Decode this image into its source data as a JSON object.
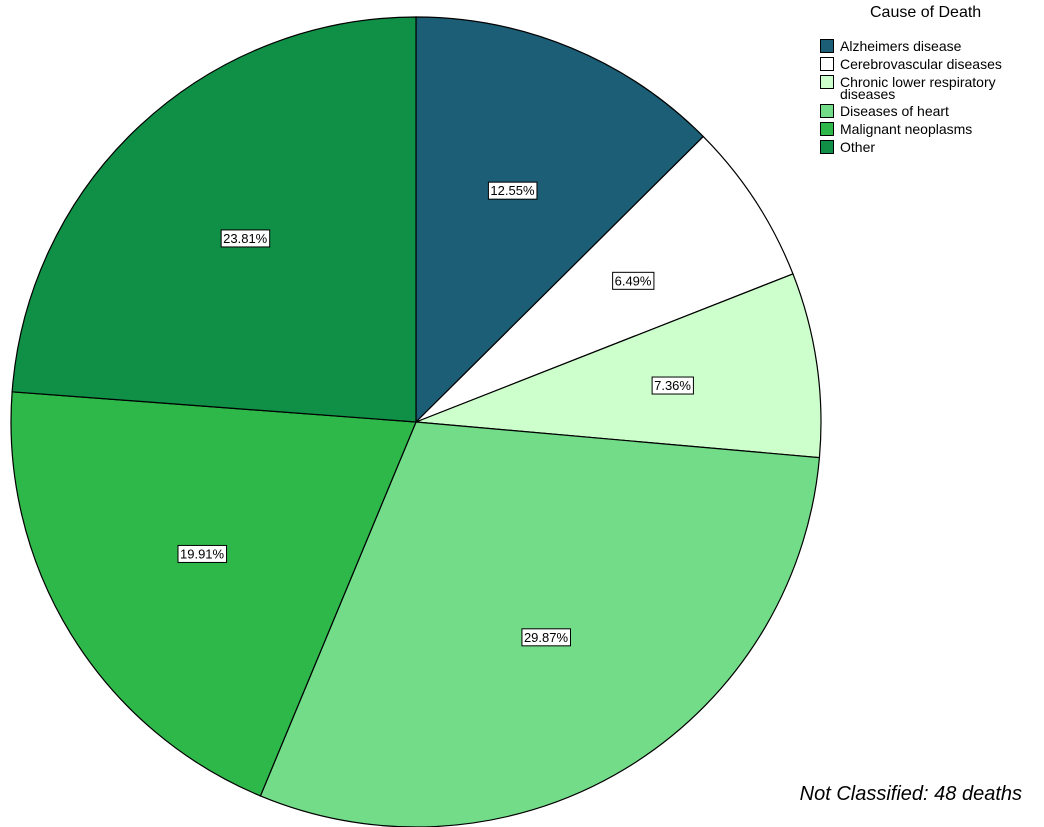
{
  "chart_data": {
    "type": "pie",
    "legend_title": "Cause of Death",
    "legend_position": "top-right",
    "slices": [
      {
        "label": "Alzheimers disease",
        "value": 12.55,
        "display": "12.55%",
        "color": "#1b5e76"
      },
      {
        "label": "Cerebrovascular diseases",
        "value": 6.49,
        "display": "6.49%",
        "color": "#ffffff"
      },
      {
        "label": "Chronic lower respiratory diseases",
        "value": 7.36,
        "display": "7.36%",
        "color": "#ccffcc"
      },
      {
        "label": "Diseases of heart",
        "value": 29.87,
        "display": "29.87%",
        "color": "#72dc88"
      },
      {
        "label": "Malignant neoplasms",
        "value": 19.91,
        "display": "19.91%",
        "color": "#2fb84a"
      },
      {
        "label": "Other",
        "value": 23.81,
        "display": "23.81%",
        "color": "#108f46"
      }
    ],
    "start_angle_deg": 0,
    "direction": "clockwise",
    "footnote": "Not Classified: 48 deaths"
  }
}
